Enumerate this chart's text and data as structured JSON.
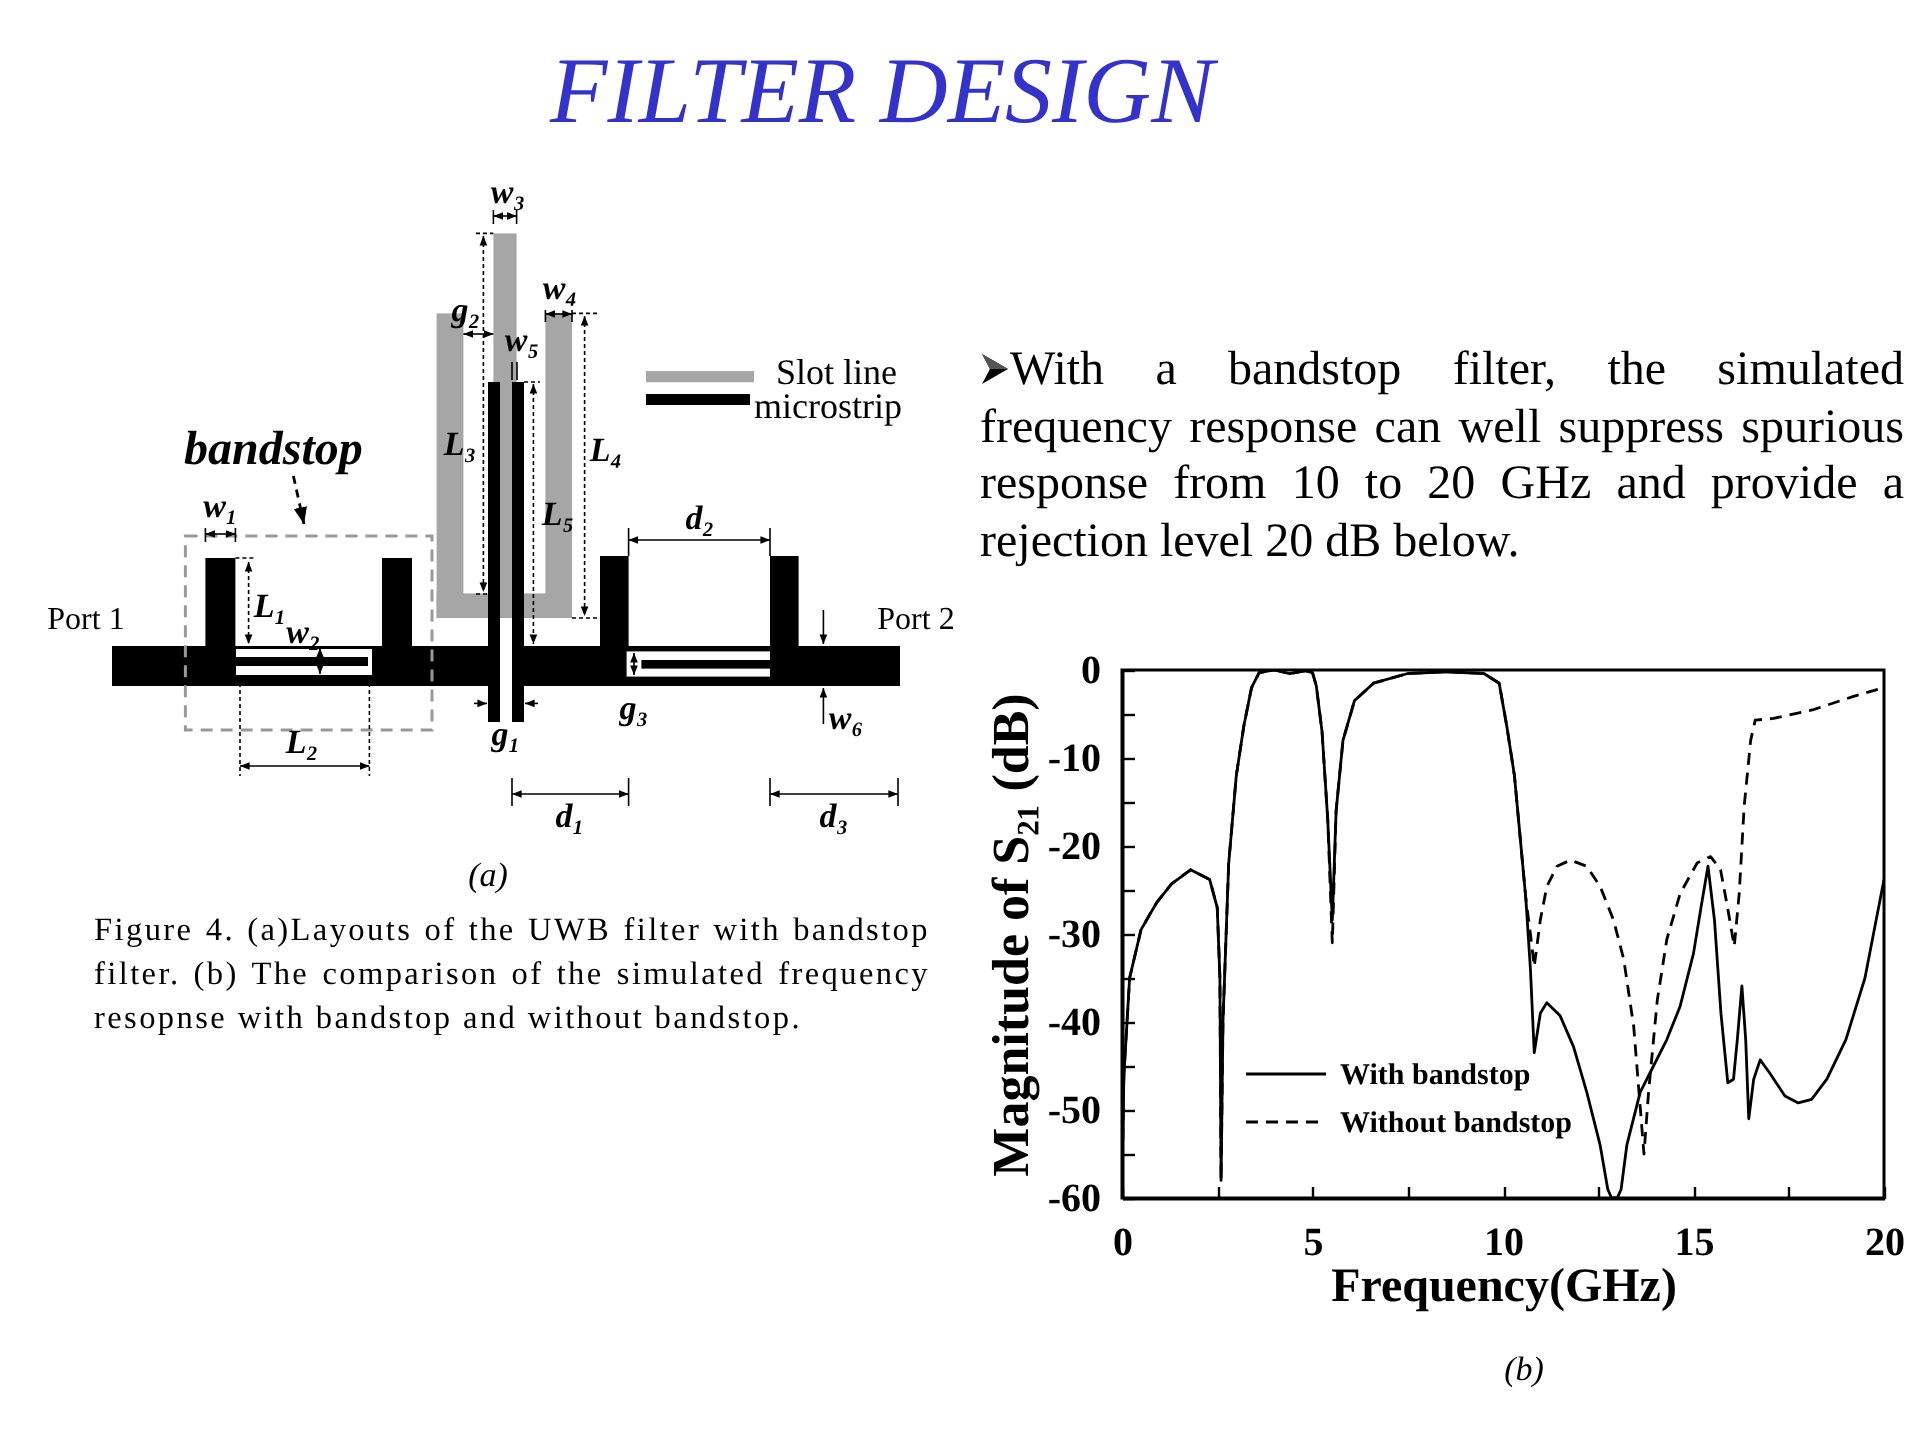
{
  "chart_data": {
    "type": "line",
    "title": "FILTER DESIGN",
    "xlabel": "Frequency(GHz)",
    "ylabel": "Magnitude of S₂₁ (dB)",
    "xlim": [
      0,
      20
    ],
    "ylim": [
      -60,
      0
    ],
    "xticks": [
      0,
      {
        "value": 2.5,
        "label": null
      },
      5,
      {
        "value": 7.5,
        "label": null
      },
      10,
      {
        "value": 12.5,
        "label": null
      },
      15,
      {
        "value": 17.5,
        "label": null
      },
      20
    ],
    "yticks": [
      -60,
      {
        "value": -55,
        "label": null
      },
      -50,
      {
        "value": -45,
        "label": null
      },
      -40,
      {
        "value": -35,
        "label": null
      },
      -30,
      {
        "value": -25,
        "label": null
      },
      -20,
      {
        "value": -15,
        "label": null
      },
      -10,
      {
        "value": -5,
        "label": null
      },
      0
    ],
    "grid": false,
    "legend": "bottom left",
    "series": [
      {
        "name": "With bandstop",
        "color": "#000000",
        "line_style": "solid",
        "x": [
          0,
          0.05,
          0.2,
          0.5,
          0.9,
          1.3,
          1.8,
          2.3,
          2.5,
          2.57,
          2.6,
          2.65,
          2.8,
          3.0,
          3.2,
          3.4,
          3.6,
          4.0,
          4.4,
          4.8,
          5.0,
          5.1,
          5.25,
          5.4,
          5.52,
          5.62,
          5.8,
          6.1,
          6.6,
          7.5,
          8.5,
          9.5,
          9.9,
          10.1,
          10.3,
          10.45,
          10.6,
          10.72,
          10.82,
          10.98,
          11.15,
          11.5,
          11.85,
          12.2,
          12.55,
          12.75,
          12.85,
          13.0,
          13.1,
          13.25,
          13.6,
          13.95,
          14.3,
          14.65,
          15.0,
          15.2,
          15.38,
          15.55,
          15.72,
          15.9,
          16.05,
          16.15,
          16.27,
          16.37,
          16.45,
          16.58,
          16.75,
          17.0,
          17.4,
          17.75,
          18.1,
          18.5,
          19.0,
          19.5,
          20
        ],
        "values": [
          -58,
          -46,
          -35,
          -29.5,
          -26.5,
          -24.3,
          -22.7,
          -23.8,
          -27,
          -35,
          -58,
          -40,
          -22,
          -12,
          -6.3,
          -2,
          -0.3,
          0,
          -0.4,
          -0.1,
          -0.3,
          -1.8,
          -7,
          -17,
          -28.4,
          -16,
          -8,
          -3.5,
          -1.5,
          -0.4,
          -0.2,
          -0.4,
          -1.5,
          -6.4,
          -12,
          -19,
          -26,
          -34,
          -43.5,
          -39,
          -37.8,
          -39.3,
          -42.8,
          -48,
          -54,
          -59,
          -60,
          -60,
          -59,
          -54,
          -48,
          -45,
          -42,
          -38.2,
          -32.2,
          -26.9,
          -22.3,
          -28.4,
          -39,
          -46.9,
          -46.5,
          -42,
          -35.9,
          -42,
          -51,
          -46.5,
          -44.3,
          -45.8,
          -48.4,
          -49.2,
          -48.8,
          -46.5,
          -42,
          -35,
          -23.8
        ]
      },
      {
        "name": "Without bandstop",
        "color": "#000000",
        "line_style": "dashed",
        "x": [
          0,
          0.05,
          0.2,
          0.5,
          0.9,
          1.3,
          1.8,
          2.3,
          2.5,
          2.57,
          2.6,
          2.65,
          2.8,
          3.0,
          3.2,
          3.4,
          3.6,
          4.0,
          4.4,
          4.8,
          5.0,
          5.1,
          5.25,
          5.4,
          5.52,
          5.62,
          5.8,
          6.1,
          6.6,
          7.5,
          8.5,
          9.5,
          9.9,
          10.1,
          10.3,
          10.45,
          10.6,
          10.72,
          10.82,
          10.98,
          11.15,
          11.42,
          11.77,
          12.2,
          12.55,
          12.9,
          13.17,
          13.43,
          13.57,
          13.7,
          13.82,
          14.05,
          14.3,
          14.65,
          15.1,
          15.45,
          15.71,
          15.89,
          16.07,
          16.2,
          16.33,
          16.5,
          16.62,
          17.1,
          18.15,
          19.2,
          20
        ],
        "values": [
          -58,
          -46,
          -35,
          -29.5,
          -26.5,
          -24.3,
          -22.7,
          -23.8,
          -27,
          -35,
          -58,
          -40,
          -22,
          -12,
          -6.3,
          -2,
          -0.3,
          0,
          -0.4,
          -0.1,
          -0.3,
          -1.8,
          -7,
          -17,
          -31,
          -16,
          -8,
          -3.5,
          -1.5,
          -0.4,
          -0.2,
          -0.4,
          -1.5,
          -6.4,
          -12,
          -19,
          -26,
          -30,
          -33.7,
          -28.4,
          -24.6,
          -22.3,
          -21.6,
          -22.3,
          -24.6,
          -28.4,
          -32.9,
          -40.5,
          -48,
          -55,
          -48,
          -37.5,
          -30.6,
          -25.4,
          -21.9,
          -21.2,
          -22.7,
          -26.9,
          -31.4,
          -25.4,
          -15.5,
          -8,
          -5.7,
          -5.5,
          -4.5,
          -3,
          -2
        ]
      }
    ],
    "annotations": [
      "With a bandstop filter, the simulated frequency response can well suppress spurious response from 10 to 20 GHz and provide a rejection level 20 dB below.",
      "(a)",
      "Figure 4. (a)Layouts of the UWB filter with bandstop filter. (b) The comparison of the simulated frequency resopnse with bandstop and without bandstop.",
      "(b)",
      "w₃",
      "g₂",
      "w₄",
      "w₅",
      "L₃",
      "L₄",
      "L₅",
      "Slot line",
      "microstrip",
      "bandstop",
      "w₁",
      "L₁",
      "w₂",
      "Port 1",
      "Port 2",
      "d₂",
      "g₃",
      "w₆",
      "g₁",
      "L₂",
      "d₁",
      "d₃"
    ]
  }
}
